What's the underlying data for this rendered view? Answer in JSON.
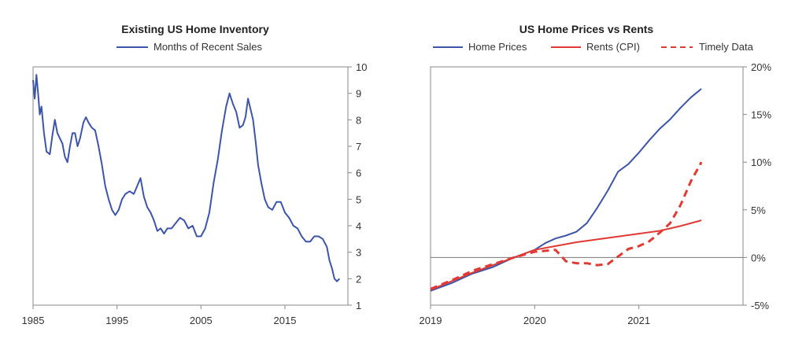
{
  "chart_data": [
    {
      "type": "line",
      "title": "Existing US Home Inventory",
      "xlabel": "",
      "ylabel": "",
      "xlim": [
        1985,
        2022.5
      ],
      "ylim": [
        1,
        10
      ],
      "x_ticks": [
        "1985",
        "1995",
        "2005",
        "2015"
      ],
      "y_ticks": [
        "1",
        "2",
        "3",
        "4",
        "5",
        "6",
        "7",
        "8",
        "9",
        "10"
      ],
      "legend": "top",
      "grid": false,
      "series": [
        {
          "name": "Months of Recent Sales",
          "color": "#3d55a8",
          "x": [
            1985.0,
            1985.2,
            1985.4,
            1985.6,
            1985.8,
            1986.0,
            1986.3,
            1986.6,
            1987.0,
            1987.3,
            1987.6,
            1987.9,
            1988.2,
            1988.5,
            1988.8,
            1989.1,
            1989.4,
            1989.7,
            1990.0,
            1990.3,
            1990.6,
            1991.0,
            1991.3,
            1991.6,
            1992.0,
            1992.4,
            1992.8,
            1993.2,
            1993.6,
            1994.0,
            1994.4,
            1994.8,
            1995.2,
            1995.6,
            1996.0,
            1996.5,
            1997.0,
            1997.4,
            1997.8,
            1998.2,
            1998.6,
            1999.0,
            1999.4,
            1999.8,
            2000.2,
            2000.6,
            2001.0,
            2001.5,
            2002.0,
            2002.5,
            2003.0,
            2003.5,
            2004.0,
            2004.5,
            2005.0,
            2005.5,
            2006.0,
            2006.5,
            2007.0,
            2007.5,
            2008.0,
            2008.4,
            2008.8,
            2009.2,
            2009.6,
            2010.0,
            2010.3,
            2010.6,
            2010.9,
            2011.2,
            2011.5,
            2011.8,
            2012.2,
            2012.6,
            2013.0,
            2013.5,
            2014.0,
            2014.5,
            2015.0,
            2015.5,
            2016.0,
            2016.5,
            2017.0,
            2017.5,
            2018.0,
            2018.5,
            2019.0,
            2019.5,
            2020.0,
            2020.3,
            2020.6,
            2020.9,
            2021.2,
            2021.5
          ],
          "values": [
            9.5,
            8.8,
            9.7,
            9.0,
            8.2,
            8.5,
            7.5,
            6.8,
            6.7,
            7.4,
            8.0,
            7.5,
            7.3,
            7.1,
            6.6,
            6.4,
            7.0,
            7.5,
            7.5,
            7.0,
            7.3,
            7.9,
            8.1,
            7.9,
            7.7,
            7.6,
            7.0,
            6.3,
            5.5,
            5.0,
            4.6,
            4.4,
            4.6,
            5.0,
            5.2,
            5.3,
            5.2,
            5.5,
            5.8,
            5.1,
            4.7,
            4.5,
            4.2,
            3.8,
            3.9,
            3.7,
            3.9,
            3.9,
            4.1,
            4.3,
            4.2,
            3.9,
            4.0,
            3.6,
            3.6,
            3.9,
            4.5,
            5.6,
            6.5,
            7.6,
            8.5,
            9.0,
            8.6,
            8.3,
            7.7,
            7.8,
            8.1,
            8.8,
            8.4,
            8.0,
            7.2,
            6.3,
            5.6,
            5.0,
            4.7,
            4.6,
            4.9,
            4.9,
            4.5,
            4.3,
            4.0,
            3.9,
            3.6,
            3.4,
            3.4,
            3.6,
            3.6,
            3.5,
            3.2,
            2.7,
            2.4,
            2.0,
            1.9,
            2.0
          ]
        }
      ]
    },
    {
      "type": "line",
      "title": "US Home Prices vs Rents",
      "xlabel": "",
      "ylabel": "",
      "xlim": [
        2019.0,
        2022.0
      ],
      "ylim": [
        -5,
        20
      ],
      "x_ticks": [
        "2019",
        "2020",
        "2021"
      ],
      "y_ticks": [
        "-5%",
        "0%",
        "5%",
        "10%",
        "15%",
        "20%"
      ],
      "legend": "top",
      "grid": false,
      "zero_line": true,
      "series": [
        {
          "name": "Home Prices",
          "color": "#3d55a8",
          "x": [
            2019.0,
            2019.2,
            2019.4,
            2019.6,
            2019.8,
            2020.0,
            2020.1,
            2020.2,
            2020.3,
            2020.4,
            2020.5,
            2020.6,
            2020.7,
            2020.8,
            2020.9,
            2021.0,
            2021.1,
            2021.2,
            2021.3,
            2021.4,
            2021.5,
            2021.6
          ],
          "values": [
            -3.5,
            -2.7,
            -1.7,
            -1.0,
            0.0,
            0.8,
            1.5,
            2.0,
            2.3,
            2.7,
            3.6,
            5.2,
            7.0,
            9.0,
            9.8,
            11.0,
            12.3,
            13.5,
            14.5,
            15.7,
            16.8,
            17.7
          ]
        },
        {
          "name": "Rents (CPI)",
          "color": "#e03a34",
          "x": [
            2019.0,
            2019.2,
            2019.4,
            2019.6,
            2019.8,
            2020.0,
            2020.2,
            2020.4,
            2020.6,
            2020.8,
            2021.0,
            2021.2,
            2021.4,
            2021.6
          ],
          "values": [
            -3.4,
            -2.5,
            -1.6,
            -0.8,
            0.0,
            0.8,
            1.2,
            1.6,
            1.9,
            2.2,
            2.5,
            2.8,
            3.3,
            3.9
          ]
        },
        {
          "name": "Timely Data",
          "color": "#e03a34",
          "dashed": true,
          "x": [
            2019.0,
            2019.2,
            2019.4,
            2019.6,
            2019.8,
            2020.0,
            2020.2,
            2020.3,
            2020.4,
            2020.5,
            2020.6,
            2020.7,
            2020.8,
            2020.9,
            2021.0,
            2021.1,
            2021.2,
            2021.3,
            2021.4,
            2021.5,
            2021.6
          ],
          "values": [
            -3.3,
            -2.4,
            -1.4,
            -0.7,
            0.0,
            0.6,
            0.8,
            -0.4,
            -0.6,
            -0.6,
            -0.8,
            -0.7,
            0.1,
            0.9,
            1.2,
            1.7,
            2.6,
            3.6,
            5.5,
            8.0,
            10.0
          ]
        }
      ]
    }
  ]
}
